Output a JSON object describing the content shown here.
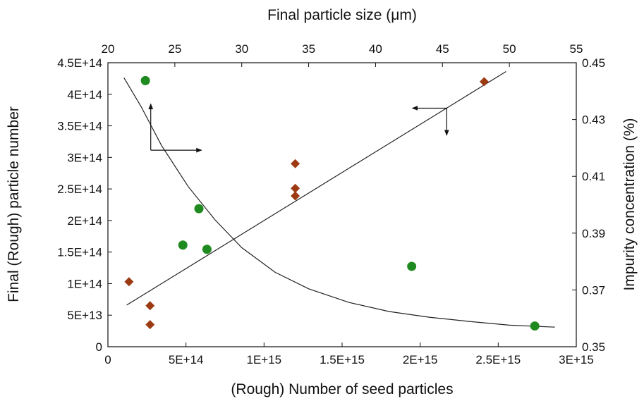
{
  "chart_data": {
    "type": "scatter",
    "title": "",
    "xlabel_bottom": "(Rough) Number of seed particles",
    "xlabel_top": "Final particle size (μm)",
    "ylabel_left": "Final (Rough) particle number",
    "ylabel_right": "Impurity concentration (%)",
    "x_bottom": {
      "lim": [
        0,
        3000000000000000.0
      ],
      "ticks": [
        0,
        500000000000000.0,
        1000000000000000.0,
        1500000000000000.0,
        2000000000000000.0,
        2500000000000000.0,
        3000000000000000.0
      ],
      "tick_labels": [
        "0",
        "5E+14",
        "1E+15",
        "1.5E+15",
        "2E+15",
        "2.5E+15",
        "3E+15"
      ]
    },
    "x_top": {
      "lim": [
        20,
        55
      ],
      "ticks": [
        20,
        25,
        30,
        35,
        40,
        45,
        50,
        55
      ],
      "tick_labels": [
        "20",
        "25",
        "30",
        "35",
        "40",
        "45",
        "50",
        "55"
      ]
    },
    "y_left": {
      "lim": [
        0,
        450000000000000.0
      ],
      "ticks": [
        0,
        50000000000000.0,
        100000000000000.0,
        150000000000000.0,
        200000000000000.0,
        250000000000000.0,
        300000000000000.0,
        350000000000000.0,
        400000000000000.0,
        450000000000000.0
      ],
      "tick_labels": [
        "0",
        "5E+13",
        "1E+14",
        "1.5E+14",
        "2E+14",
        "2.5E+14",
        "3E+14",
        "3.5E+14",
        "4E+14",
        "4.5E+14"
      ]
    },
    "y_right": {
      "lim": [
        0.35,
        0.45
      ],
      "ticks": [
        0.35,
        0.37,
        0.39,
        0.41,
        0.43,
        0.45
      ],
      "tick_labels": [
        "0.35",
        "0.37",
        "0.39",
        "0.41",
        "0.43",
        "0.45"
      ]
    },
    "grid": false,
    "legend": "none",
    "series": [
      {
        "marker": "diamond",
        "color": "#9c3a12",
        "axes": "bottom-left",
        "points": [
          {
            "x": 135000000000000.0,
            "y": 103000000000000.0
          },
          {
            "x": 270000000000000.0,
            "y": 65000000000000.0
          },
          {
            "x": 270000000000000.0,
            "y": 35000000000000.0
          },
          {
            "x": 1200000000000000.0,
            "y": 290000000000000.0
          },
          {
            "x": 1200000000000000.0,
            "y": 251000000000000.0
          },
          {
            "x": 1200000000000000.0,
            "y": 239000000000000.0
          },
          {
            "x": 2410000000000000.0,
            "y": 420000000000000.0
          }
        ],
        "fit": {
          "kind": "linear",
          "points": [
            {
              "x": 120000000000000.0,
              "y": 66000000000000.0
            },
            {
              "x": 2550000000000000.0,
              "y": 436000000000000.0
            }
          ]
        }
      },
      {
        "marker": "circle",
        "color": "#1f8a1f",
        "axes": "top-right",
        "points": [
          {
            "x": 22.8,
            "y": 0.4437
          },
          {
            "x": 25.6,
            "y": 0.3858
          },
          {
            "x": 26.8,
            "y": 0.3986
          },
          {
            "x": 27.4,
            "y": 0.3843
          },
          {
            "x": 42.7,
            "y": 0.3783
          },
          {
            "x": 51.9,
            "y": 0.3573
          }
        ],
        "fit": {
          "kind": "curve",
          "points": [
            {
              "x": 21.2,
              "y": 0.4447
            },
            {
              "x": 22.5,
              "y": 0.4344
            },
            {
              "x": 24.0,
              "y": 0.4209
            },
            {
              "x": 26.0,
              "y": 0.4064
            },
            {
              "x": 28.0,
              "y": 0.3947
            },
            {
              "x": 30.0,
              "y": 0.3849
            },
            {
              "x": 32.5,
              "y": 0.3762
            },
            {
              "x": 35.0,
              "y": 0.3704
            },
            {
              "x": 38.0,
              "y": 0.3656
            },
            {
              "x": 41.0,
              "y": 0.3624
            },
            {
              "x": 44.0,
              "y": 0.3604
            },
            {
              "x": 47.0,
              "y": 0.3589
            },
            {
              "x": 50.0,
              "y": 0.3576
            },
            {
              "x": 53.4,
              "y": 0.3569
            }
          ]
        }
      }
    ],
    "annotations": [
      {
        "kind": "arrow",
        "meaning": "to top axis",
        "axes": "top-right",
        "from": {
          "x": 23.2,
          "y": 0.4192
        },
        "to": {
          "x": 27.0,
          "y": 0.4192
        }
      },
      {
        "kind": "arrow",
        "meaning": "to right axis",
        "axes": "top-right",
        "from": {
          "x": 23.2,
          "y": 0.4192
        },
        "to": {
          "x": 23.2,
          "y": 0.4355
        }
      },
      {
        "kind": "arrow",
        "meaning": "to left axis",
        "axes": "bottom-left",
        "from": {
          "x": 2170000000000000.0,
          "y": 378000000000000.0
        },
        "to": {
          "x": 1950000000000000.0,
          "y": 378000000000000.0
        }
      },
      {
        "kind": "arrow",
        "meaning": "to bottom axis",
        "axes": "bottom-left",
        "from": {
          "x": 2170000000000000.0,
          "y": 378000000000000.0
        },
        "to": {
          "x": 2170000000000000.0,
          "y": 335000000000000.0
        }
      }
    ]
  }
}
